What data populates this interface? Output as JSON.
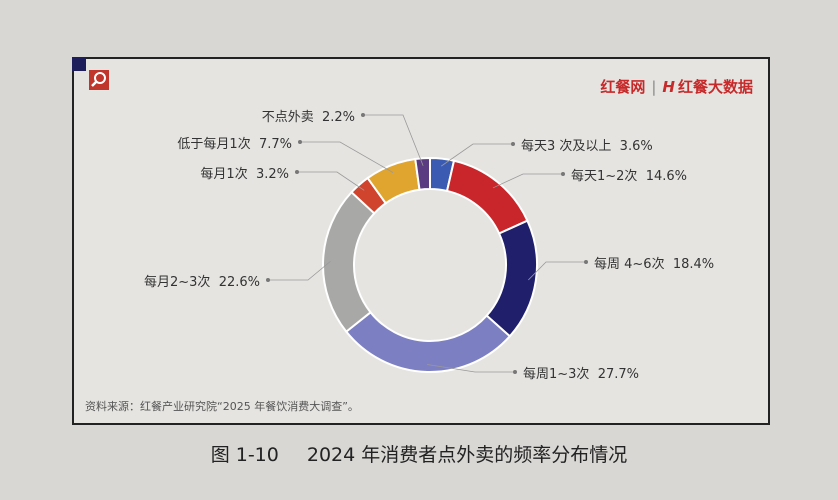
{
  "chart_data": {
    "type": "pie",
    "donut": true,
    "title": "2024 年消费者点外卖的频率分布情况",
    "figure_number": "图 1-10",
    "source": "资料来源：红餐产业研究院“2025 年餐饮消费大调查”。",
    "unit": "%",
    "slices": [
      {
        "label": "每天3 次及以上",
        "value": 3.6,
        "display": "3.6%",
        "color": "#3b5bb3"
      },
      {
        "label": "每天1~2次",
        "value": 14.6,
        "display": "14.6%",
        "color": "#c8262a"
      },
      {
        "label": "每周 4~6次",
        "value": 18.4,
        "display": "18.4%",
        "color": "#1f1f6b"
      },
      {
        "label": "每周1~3次",
        "value": 27.7,
        "display": "27.7%",
        "color": "#7c80c2"
      },
      {
        "label": "每月2~3次",
        "value": 22.6,
        "display": "22.6%",
        "color": "#a8a8a6"
      },
      {
        "label": "每月1次",
        "value": 3.2,
        "display": "3.2%",
        "color": "#d0432c"
      },
      {
        "label": "低于每月1次",
        "value": 7.7,
        "display": "7.7%",
        "color": "#e0a52e"
      },
      {
        "label": "不点外卖",
        "value": 2.2,
        "display": "2.2%",
        "color": "#5a3a80"
      }
    ]
  },
  "logo": {
    "brand1": "红餐网",
    "brand2": "红餐大数据",
    "mark": "H"
  }
}
